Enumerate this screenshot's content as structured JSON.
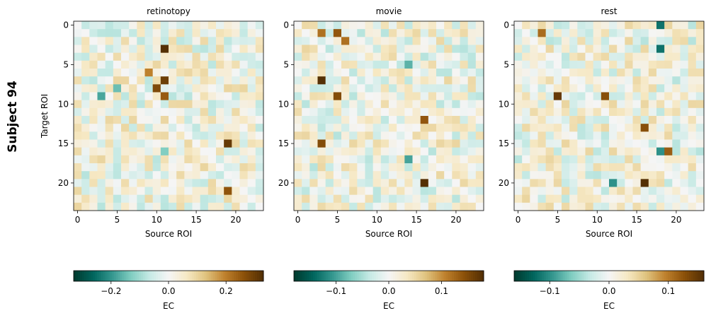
{
  "suptitle": "Subject 94",
  "chart_data": [
    {
      "type": "heatmap",
      "title": "retinotopy",
      "xlabel": "Source ROI",
      "ylabel": "Target ROI",
      "xticks": [
        0,
        5,
        10,
        15,
        20
      ],
      "yticks": [
        0,
        5,
        10,
        15,
        20
      ],
      "size": 24,
      "colormap": "BrBG_r",
      "colorbar": {
        "label": "EC",
        "range": [
          -0.33,
          0.33
        ],
        "ticks": [
          -0.2,
          0.0,
          0.2
        ],
        "tick_labels": [
          "−0.2",
          "0.0",
          "0.2"
        ]
      },
      "strong_entries": [
        {
          "row": 3,
          "col": 11,
          "value": 0.33
        },
        {
          "row": 7,
          "col": 11,
          "value": 0.3
        },
        {
          "row": 8,
          "col": 10,
          "value": 0.28
        },
        {
          "row": 9,
          "col": 11,
          "value": 0.25
        },
        {
          "row": 15,
          "col": 19,
          "value": 0.31
        },
        {
          "row": 21,
          "col": 19,
          "value": 0.26
        },
        {
          "row": 6,
          "col": 9,
          "value": 0.2
        },
        {
          "row": 9,
          "col": 3,
          "value": -0.18
        },
        {
          "row": 8,
          "col": 5,
          "value": -0.15
        },
        {
          "row": 16,
          "col": 11,
          "value": -0.13
        }
      ]
    },
    {
      "type": "heatmap",
      "title": "movie",
      "xlabel": "Source ROI",
      "xticks": [
        0,
        5,
        10,
        15,
        20
      ],
      "yticks": [
        0,
        5,
        10,
        15,
        20
      ],
      "size": 24,
      "colormap": "BrBG_r",
      "colorbar": {
        "label": "EC",
        "range": [
          -0.18,
          0.18
        ],
        "ticks": [
          -0.1,
          0.0,
          0.1
        ],
        "tick_labels": [
          "−0.1",
          "0.0",
          "0.1"
        ]
      },
      "strong_entries": [
        {
          "row": 7,
          "col": 3,
          "value": 0.18
        },
        {
          "row": 20,
          "col": 16,
          "value": 0.18
        },
        {
          "row": 9,
          "col": 5,
          "value": 0.15
        },
        {
          "row": 15,
          "col": 3,
          "value": 0.15
        },
        {
          "row": 12,
          "col": 16,
          "value": 0.14
        },
        {
          "row": 1,
          "col": 5,
          "value": 0.14
        },
        {
          "row": 2,
          "col": 6,
          "value": 0.12
        },
        {
          "row": 1,
          "col": 3,
          "value": 0.12
        },
        {
          "row": 17,
          "col": 14,
          "value": -0.1
        },
        {
          "row": 5,
          "col": 14,
          "value": -0.09
        }
      ]
    },
    {
      "type": "heatmap",
      "title": "rest",
      "xlabel": "Source ROI",
      "xticks": [
        0,
        5,
        10,
        15,
        20
      ],
      "yticks": [
        0,
        5,
        10,
        15,
        20
      ],
      "size": 24,
      "colormap": "BrBG_r",
      "colorbar": {
        "label": "EC",
        "range": [
          -0.16,
          0.16
        ],
        "ticks": [
          -0.1,
          0.0,
          0.1
        ],
        "tick_labels": [
          "−0.1",
          "0.0",
          "0.1"
        ]
      },
      "strong_entries": [
        {
          "row": 20,
          "col": 16,
          "value": 0.16
        },
        {
          "row": 9,
          "col": 5,
          "value": 0.15
        },
        {
          "row": 9,
          "col": 11,
          "value": 0.13
        },
        {
          "row": 13,
          "col": 16,
          "value": 0.13
        },
        {
          "row": 16,
          "col": 19,
          "value": 0.12
        },
        {
          "row": 1,
          "col": 3,
          "value": 0.11
        },
        {
          "row": 0,
          "col": 18,
          "value": -0.12
        },
        {
          "row": 3,
          "col": 18,
          "value": -0.12
        },
        {
          "row": 16,
          "col": 18,
          "value": -0.1
        },
        {
          "row": 20,
          "col": 12,
          "value": -0.1
        }
      ]
    }
  ]
}
